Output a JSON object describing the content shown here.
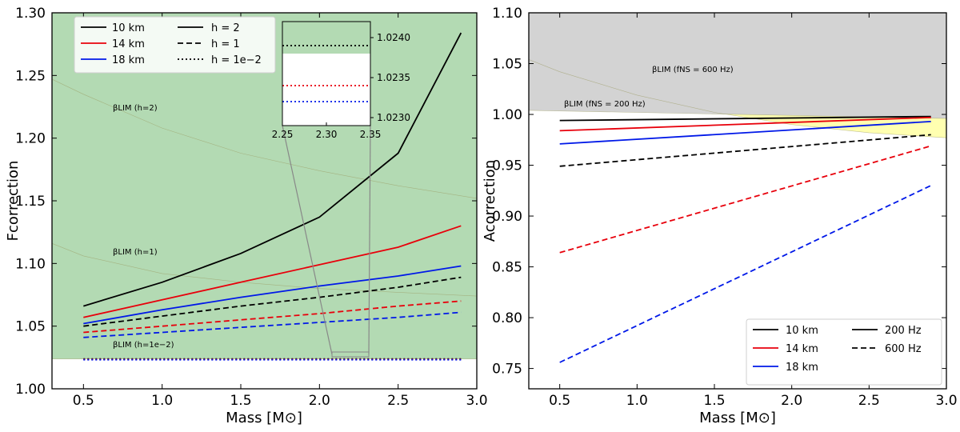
{
  "chart_data": [
    {
      "type": "line",
      "xlabel": "Mass [M⊙]",
      "ylabel": "Fcorrection",
      "xlim": [
        0.3,
        3.0
      ],
      "ylim": [
        1.0,
        1.3
      ],
      "xticks": [
        "0.5",
        "1.0",
        "1.5",
        "2.0",
        "2.5",
        "3.0"
      ],
      "yticks": [
        "1.00",
        "1.05",
        "1.10",
        "1.15",
        "1.20",
        "1.25",
        "1.30"
      ],
      "legend_placement": "top-left",
      "legend_radius": [
        "10 km",
        "14 km",
        "18 km"
      ],
      "legend_h": [
        "h = 2",
        "h = 1",
        "h = 1e−2"
      ],
      "colors": {
        "10 km": "#000000",
        "14 km": "#e8000b",
        "18 km": "#0018e8"
      },
      "regions": [
        {
          "label": "βLIM (h=2)",
          "color": "#ffffb0",
          "boundary_x": [
            0.3,
            0.5,
            1.0,
            1.5,
            2.0,
            2.5,
            3.0
          ],
          "boundary_y": [
            1.247,
            1.235,
            1.208,
            1.188,
            1.174,
            1.162,
            1.152
          ]
        },
        {
          "label": "βLIM (h=1)",
          "color": "#d3d3d3",
          "boundary_x": [
            0.3,
            0.5,
            1.0,
            1.5,
            2.0,
            2.5,
            3.0
          ],
          "boundary_y": [
            1.116,
            1.106,
            1.092,
            1.085,
            1.08,
            1.077,
            1.074
          ]
        },
        {
          "label": "βLIM (h=1e−2)",
          "color": "#b3dab3",
          "boundary_x": [
            0.3,
            3.0
          ],
          "boundary_y": [
            1.0238,
            1.0238
          ]
        }
      ],
      "x": [
        0.5,
        1.0,
        1.5,
        2.0,
        2.5,
        2.9
      ],
      "series": [
        {
          "name": "10 km",
          "h": "h = 2",
          "values": [
            1.066,
            1.085,
            1.108,
            1.137,
            1.188,
            1.284
          ]
        },
        {
          "name": "14 km",
          "h": "h = 2",
          "values": [
            1.057,
            1.071,
            1.085,
            1.099,
            1.113,
            1.13
          ]
        },
        {
          "name": "18 km",
          "h": "h = 2",
          "values": [
            1.052,
            1.063,
            1.073,
            1.082,
            1.09,
            1.098
          ]
        },
        {
          "name": "10 km",
          "h": "h = 1",
          "values": [
            1.05,
            1.058,
            1.066,
            1.073,
            1.081,
            1.089
          ]
        },
        {
          "name": "14 km",
          "h": "h = 1",
          "values": [
            1.045,
            1.05,
            1.055,
            1.06,
            1.066,
            1.07
          ]
        },
        {
          "name": "18 km",
          "h": "h = 1",
          "values": [
            1.041,
            1.045,
            1.049,
            1.053,
            1.057,
            1.061
          ]
        },
        {
          "name": "10 km",
          "h": "h = 1e−2",
          "values": [
            1.0239,
            1.0239,
            1.0239,
            1.0239,
            1.0239,
            1.0239
          ]
        },
        {
          "name": "14 km",
          "h": "h = 1e−2",
          "values": [
            1.0234,
            1.0234,
            1.0234,
            1.0234,
            1.0234,
            1.0234
          ]
        },
        {
          "name": "18 km",
          "h": "h = 1e−2",
          "values": [
            1.0232,
            1.0232,
            1.0232,
            1.0232,
            1.0232,
            1.0232
          ]
        }
      ],
      "inset": {
        "xlim": [
          2.25,
          2.35
        ],
        "ylim": [
          1.0229,
          1.0242
        ],
        "xticks": [
          "2.25",
          "2.30",
          "2.35"
        ],
        "yticks": [
          "1.0230",
          "1.0235",
          "1.0240"
        ]
      }
    },
    {
      "type": "line",
      "xlabel": "Mass [M⊙]",
      "ylabel": "Acorrection",
      "xlim": [
        0.3,
        3.0
      ],
      "ylim": [
        0.73,
        1.1
      ],
      "xticks": [
        "0.5",
        "1.0",
        "1.5",
        "2.0",
        "2.5",
        "3.0"
      ],
      "yticks": [
        "0.75",
        "0.80",
        "0.85",
        "0.90",
        "0.95",
        "1.00",
        "1.05",
        "1.10"
      ],
      "legend_placement": "bottom-right",
      "legend_radius": [
        "10 km",
        "14 km",
        "18 km"
      ],
      "legend_freq": [
        "200 Hz",
        "600 Hz"
      ],
      "colors": {
        "10 km": "#000000",
        "14 km": "#e8000b",
        "18 km": "#0018e8"
      },
      "regions": [
        {
          "label": "βLIM (fNS = 600 Hz)",
          "color": "#ffffb0",
          "boundary_x": [
            0.3,
            0.5,
            1.0,
            1.5,
            2.0,
            2.5,
            3.0
          ],
          "boundary_y": [
            1.054,
            1.042,
            1.019,
            1.002,
            0.99,
            0.982,
            0.977
          ]
        },
        {
          "label": "βLIM (fNS = 200 Hz)",
          "color": "#d3d3d3",
          "boundary_x": [
            0.3,
            3.0
          ],
          "boundary_y": [
            1.004,
            0.996
          ]
        }
      ],
      "x": [
        0.5,
        2.9
      ],
      "series": [
        {
          "name": "10 km",
          "freq": "200 Hz",
          "values": [
            0.994,
            0.998
          ]
        },
        {
          "name": "14 km",
          "freq": "200 Hz",
          "values": [
            0.984,
            0.997
          ]
        },
        {
          "name": "18 km",
          "freq": "200 Hz",
          "values": [
            0.971,
            0.993
          ]
        },
        {
          "name": "10 km",
          "freq": "600 Hz",
          "values": [
            0.949,
            0.98
          ]
        },
        {
          "name": "14 km",
          "freq": "600 Hz",
          "values": [
            0.864,
            0.969
          ]
        },
        {
          "name": "18 km",
          "freq": "600 Hz",
          "values": [
            0.756,
            0.93
          ]
        }
      ]
    }
  ]
}
